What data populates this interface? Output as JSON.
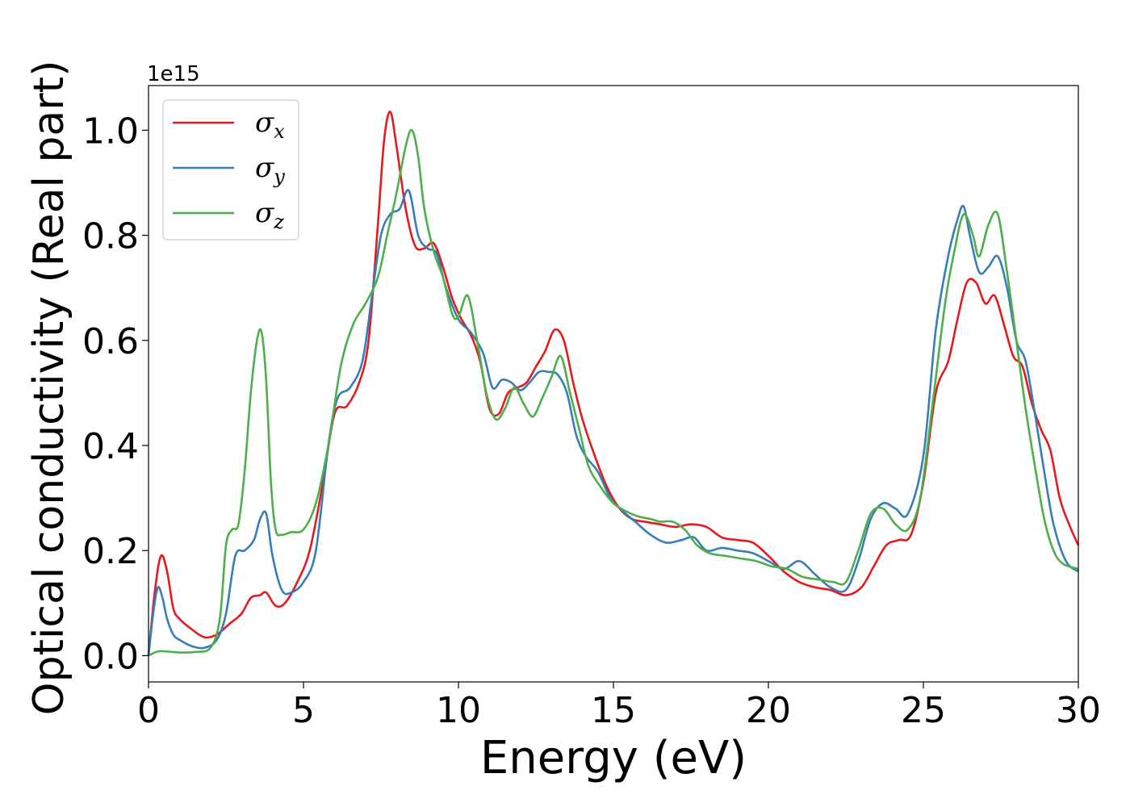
{
  "chart_data": {
    "type": "line",
    "title": "",
    "xlabel": "Energy (eV)",
    "ylabel": "Optical conductivity (Real part)",
    "offset_text": "1e15",
    "xlim": [
      0,
      30
    ],
    "ylim": [
      -0.05,
      1.085
    ],
    "xticks": [
      0,
      5,
      10,
      15,
      20,
      25,
      30
    ],
    "xtick_labels": [
      "0",
      "5",
      "10",
      "15",
      "20",
      "25",
      "30"
    ],
    "yticks": [
      0.0,
      0.2,
      0.4,
      0.6,
      0.8,
      1.0
    ],
    "ytick_labels": [
      "0.0",
      "0.2",
      "0.4",
      "0.6",
      "0.8",
      "1.0"
    ],
    "grid": false,
    "legend": {
      "position": "upper-left",
      "entries": [
        {
          "symbol": "σ",
          "sub": "x"
        },
        {
          "symbol": "σ",
          "sub": "y"
        },
        {
          "symbol": "σ",
          "sub": "z"
        }
      ]
    },
    "series": [
      {
        "color": "#e41a1c",
        "x": [
          0,
          0.2,
          0.4,
          0.6,
          0.8,
          1.0,
          1.4,
          1.8,
          2.2,
          2.6,
          3.0,
          3.3,
          3.6,
          3.8,
          4.1,
          4.4,
          4.8,
          5.2,
          5.6,
          6.0,
          6.4,
          6.8,
          7.1,
          7.4,
          7.6,
          7.8,
          8.0,
          8.3,
          8.6,
          8.9,
          9.2,
          9.5,
          9.8,
          10.1,
          10.4,
          10.7,
          11.0,
          11.3,
          11.6,
          11.9,
          12.2,
          12.5,
          12.8,
          13.1,
          13.4,
          13.7,
          14.0,
          14.4,
          14.8,
          15.2,
          15.6,
          16.0,
          16.5,
          17.0,
          17.5,
          18.0,
          18.5,
          19.0,
          19.5,
          20.0,
          20.5,
          21.0,
          21.5,
          22.0,
          22.5,
          23.0,
          23.4,
          23.8,
          24.2,
          24.6,
          25.0,
          25.4,
          25.8,
          26.1,
          26.4,
          26.7,
          27.0,
          27.3,
          27.6,
          27.9,
          28.2,
          28.5,
          28.8,
          29.1,
          29.4,
          29.7,
          30.0
        ],
        "values": [
          0.0,
          0.12,
          0.19,
          0.16,
          0.09,
          0.07,
          0.05,
          0.035,
          0.04,
          0.06,
          0.08,
          0.11,
          0.115,
          0.12,
          0.095,
          0.1,
          0.14,
          0.2,
          0.32,
          0.46,
          0.475,
          0.52,
          0.6,
          0.82,
          0.98,
          1.035,
          0.97,
          0.85,
          0.78,
          0.775,
          0.785,
          0.74,
          0.68,
          0.64,
          0.61,
          0.56,
          0.47,
          0.46,
          0.5,
          0.51,
          0.52,
          0.55,
          0.58,
          0.62,
          0.6,
          0.52,
          0.45,
          0.38,
          0.32,
          0.28,
          0.26,
          0.255,
          0.25,
          0.245,
          0.25,
          0.245,
          0.225,
          0.22,
          0.215,
          0.19,
          0.16,
          0.14,
          0.13,
          0.125,
          0.115,
          0.13,
          0.17,
          0.21,
          0.22,
          0.23,
          0.33,
          0.5,
          0.56,
          0.64,
          0.71,
          0.71,
          0.67,
          0.685,
          0.63,
          0.57,
          0.55,
          0.48,
          0.43,
          0.39,
          0.3,
          0.25,
          0.21
        ]
      },
      {
        "color": "#377eb8",
        "x": [
          0,
          0.15,
          0.3,
          0.45,
          0.6,
          0.8,
          1.0,
          1.4,
          1.8,
          2.2,
          2.5,
          2.8,
          3.1,
          3.4,
          3.6,
          3.8,
          4.0,
          4.3,
          4.6,
          5.0,
          5.4,
          5.8,
          6.1,
          6.5,
          6.9,
          7.2,
          7.5,
          7.8,
          8.1,
          8.4,
          8.7,
          9.0,
          9.3,
          9.6,
          10.0,
          10.4,
          10.8,
          11.1,
          11.4,
          11.7,
          12.0,
          12.3,
          12.6,
          12.9,
          13.2,
          13.5,
          13.8,
          14.1,
          14.5,
          14.9,
          15.3,
          15.7,
          16.2,
          16.7,
          17.2,
          17.6,
          18.0,
          18.5,
          19.0,
          19.5,
          20.0,
          20.5,
          21.0,
          21.5,
          22.0,
          22.5,
          22.9,
          23.3,
          23.7,
          24.1,
          24.5,
          25.0,
          25.4,
          25.8,
          26.1,
          26.3,
          26.5,
          26.8,
          27.1,
          27.4,
          27.7,
          28.0,
          28.3,
          28.6,
          28.9,
          29.2,
          29.6,
          30.0
        ],
        "values": [
          0.0,
          0.08,
          0.13,
          0.11,
          0.07,
          0.04,
          0.03,
          0.018,
          0.015,
          0.03,
          0.08,
          0.19,
          0.2,
          0.22,
          0.26,
          0.27,
          0.19,
          0.125,
          0.12,
          0.14,
          0.2,
          0.4,
          0.49,
          0.51,
          0.56,
          0.68,
          0.8,
          0.84,
          0.85,
          0.885,
          0.8,
          0.775,
          0.765,
          0.7,
          0.64,
          0.615,
          0.575,
          0.51,
          0.525,
          0.52,
          0.505,
          0.52,
          0.54,
          0.54,
          0.535,
          0.5,
          0.42,
          0.38,
          0.35,
          0.3,
          0.275,
          0.255,
          0.23,
          0.215,
          0.22,
          0.225,
          0.2,
          0.205,
          0.2,
          0.195,
          0.18,
          0.165,
          0.18,
          0.155,
          0.13,
          0.125,
          0.18,
          0.26,
          0.29,
          0.28,
          0.27,
          0.38,
          0.62,
          0.76,
          0.83,
          0.855,
          0.8,
          0.73,
          0.74,
          0.76,
          0.7,
          0.6,
          0.56,
          0.46,
          0.35,
          0.25,
          0.18,
          0.16
        ]
      },
      {
        "color": "#4daf4a",
        "x": [
          0,
          0.3,
          0.6,
          1.0,
          1.5,
          2.0,
          2.3,
          2.5,
          2.7,
          2.9,
          3.1,
          3.3,
          3.5,
          3.65,
          3.8,
          3.95,
          4.1,
          4.3,
          4.6,
          5.0,
          5.4,
          5.8,
          6.2,
          6.6,
          7.0,
          7.4,
          7.7,
          8.0,
          8.3,
          8.5,
          8.7,
          8.9,
          9.2,
          9.5,
          9.8,
          10.0,
          10.3,
          10.6,
          10.9,
          11.2,
          11.5,
          11.8,
          12.1,
          12.4,
          12.7,
          13.0,
          13.3,
          13.6,
          13.9,
          14.2,
          14.6,
          15.0,
          15.4,
          15.8,
          16.2,
          16.5,
          16.9,
          17.3,
          17.7,
          18.1,
          18.6,
          19.1,
          19.6,
          20.1,
          20.6,
          21.1,
          21.6,
          22.1,
          22.5,
          22.9,
          23.3,
          23.7,
          24.1,
          24.5,
          24.9,
          25.3,
          25.7,
          26.0,
          26.3,
          26.6,
          26.8,
          27.1,
          27.4,
          27.7,
          28.0,
          28.3,
          28.6,
          28.9,
          29.2,
          29.5,
          30.0
        ],
        "values": [
          0.0,
          0.008,
          0.008,
          0.006,
          0.007,
          0.015,
          0.07,
          0.21,
          0.24,
          0.25,
          0.35,
          0.5,
          0.6,
          0.615,
          0.52,
          0.33,
          0.24,
          0.23,
          0.235,
          0.24,
          0.29,
          0.4,
          0.55,
          0.63,
          0.67,
          0.72,
          0.8,
          0.88,
          0.97,
          1.0,
          0.95,
          0.85,
          0.77,
          0.72,
          0.65,
          0.645,
          0.685,
          0.6,
          0.5,
          0.45,
          0.47,
          0.51,
          0.48,
          0.455,
          0.49,
          0.53,
          0.57,
          0.5,
          0.43,
          0.36,
          0.32,
          0.29,
          0.275,
          0.265,
          0.26,
          0.255,
          0.255,
          0.24,
          0.21,
          0.195,
          0.19,
          0.185,
          0.18,
          0.17,
          0.165,
          0.15,
          0.145,
          0.14,
          0.14,
          0.2,
          0.27,
          0.28,
          0.25,
          0.24,
          0.3,
          0.48,
          0.67,
          0.77,
          0.84,
          0.8,
          0.76,
          0.82,
          0.84,
          0.73,
          0.6,
          0.47,
          0.36,
          0.26,
          0.2,
          0.175,
          0.165
        ]
      }
    ]
  }
}
